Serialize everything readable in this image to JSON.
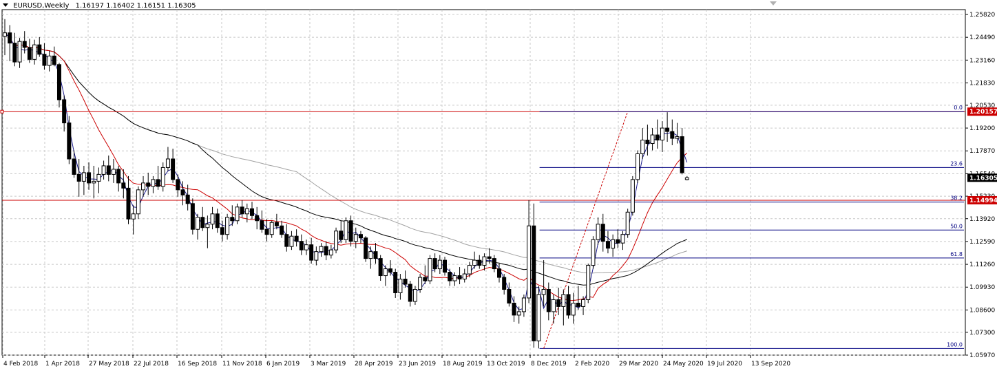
{
  "header": {
    "symbol": "EURUSD,Weekly",
    "ohlc": "1.16197 1.16402 1.16151 1.16305"
  },
  "colors": {
    "bull": "#ffffff",
    "bear": "#000000",
    "grid": "#c8c8c8",
    "ma_fast": "#1a1a8c",
    "ma_mid": "#cc0000",
    "ma_long": "#000000",
    "ma_xlong": "#a0a0a0",
    "fib": "#000080",
    "hline": "#cc0000",
    "trend": "#cc0000",
    "price_badge": "#000000",
    "level_badge": "#cc0000"
  },
  "chart_data": {
    "type": "candlestick",
    "symbol": "EURUSD",
    "timeframe": "Weekly",
    "y_ticks": [
      1.2582,
      1.2449,
      1.2316,
      1.2183,
      1.2053,
      1.192,
      1.1787,
      1.1654,
      1.1523,
      1.1392,
      1.1259,
      1.1126,
      1.0993,
      1.086,
      1.073,
      1.0597
    ],
    "y_tick_labels": [
      "1.25820",
      "1.24490",
      "1.23160",
      "1.21830",
      "1.20530",
      "1.19200",
      "1.17870",
      "1.16540",
      "1.15230",
      "1.13920",
      "1.12590",
      "1.11260",
      "1.09930",
      "1.08600",
      "1.07300",
      "1.05970"
    ],
    "ylim": [
      1.0597,
      1.2582
    ],
    "x_tick_labels": [
      "4 Feb 2018",
      "1 Apr 2018",
      "27 May 2018",
      "22 Jul 2018",
      "16 Sep 2018",
      "11 Nov 2018",
      "6 Jan 2019",
      "3 Mar 2019",
      "28 Apr 2019",
      "23 Jun 2019",
      "18 Aug 2019",
      "13 Oct 2019",
      "8 Dec 2019",
      "2 Feb 2020",
      "29 Mar 2020",
      "24 May 2020",
      "19 Jul 2020",
      "13 Sep 2020"
    ],
    "current_price": "1.16305",
    "current_price_value": 1.16305,
    "horizontal_levels": [
      {
        "label": "1.20157",
        "value": 1.20157
      },
      {
        "label": "1.14994",
        "value": 1.14994
      }
    ],
    "fibonacci": {
      "high": 1.20157,
      "low": 1.06358,
      "levels": [
        {
          "label": "0.0",
          "value": 1.20157
        },
        {
          "label": "23.6",
          "value": 1.16901
        },
        {
          "label": "38.2",
          "value": 1.14886
        },
        {
          "label": "50.0",
          "value": 1.13258
        },
        {
          "label": "61.8",
          "value": 1.1163
        },
        {
          "label": "100.0",
          "value": 1.06358
        }
      ]
    },
    "candles": [
      [
        1.2455,
        1.2555,
        1.2345,
        1.2475
      ],
      [
        1.2475,
        1.252,
        1.231,
        1.2415
      ],
      [
        1.2415,
        1.2475,
        1.228,
        1.2305
      ],
      [
        1.2305,
        1.2445,
        1.227,
        1.2425
      ],
      [
        1.2425,
        1.2485,
        1.2355,
        1.239
      ],
      [
        1.239,
        1.244,
        1.23,
        1.232
      ],
      [
        1.232,
        1.2435,
        1.229,
        1.2405
      ],
      [
        1.2405,
        1.245,
        1.2335,
        1.235
      ],
      [
        1.235,
        1.2415,
        1.226,
        1.2285
      ],
      [
        1.2285,
        1.237,
        1.225,
        1.234
      ],
      [
        1.234,
        1.2395,
        1.228,
        1.229
      ],
      [
        1.229,
        1.23,
        1.204,
        1.2085
      ],
      [
        1.2085,
        1.211,
        1.19,
        1.195
      ],
      [
        1.195,
        1.199,
        1.171,
        1.174
      ],
      [
        1.174,
        1.179,
        1.163,
        1.165
      ],
      [
        1.165,
        1.174,
        1.152,
        1.161
      ],
      [
        1.161,
        1.17,
        1.153,
        1.166
      ],
      [
        1.166,
        1.172,
        1.156,
        1.16
      ],
      [
        1.16,
        1.17,
        1.151,
        1.161
      ],
      [
        1.161,
        1.169,
        1.154,
        1.165
      ],
      [
        1.165,
        1.173,
        1.162,
        1.17
      ],
      [
        1.17,
        1.176,
        1.161,
        1.165
      ],
      [
        1.165,
        1.174,
        1.16,
        1.168
      ],
      [
        1.168,
        1.17,
        1.155,
        1.16
      ],
      [
        1.16,
        1.168,
        1.151,
        1.157
      ],
      [
        1.157,
        1.164,
        1.136,
        1.139
      ],
      [
        1.139,
        1.147,
        1.13,
        1.142
      ],
      [
        1.142,
        1.158,
        1.139,
        1.156
      ],
      [
        1.156,
        1.164,
        1.152,
        1.16
      ],
      [
        1.16,
        1.166,
        1.153,
        1.158
      ],
      [
        1.158,
        1.164,
        1.154,
        1.162
      ],
      [
        1.162,
        1.17,
        1.156,
        1.158
      ],
      [
        1.158,
        1.172,
        1.155,
        1.169
      ],
      [
        1.169,
        1.181,
        1.167,
        1.174
      ],
      [
        1.174,
        1.18,
        1.16,
        1.162
      ],
      [
        1.162,
        1.165,
        1.152,
        1.156
      ],
      [
        1.156,
        1.161,
        1.147,
        1.153
      ],
      [
        1.153,
        1.159,
        1.144,
        1.148
      ],
      [
        1.148,
        1.151,
        1.13,
        1.133
      ],
      [
        1.133,
        1.142,
        1.127,
        1.14
      ],
      [
        1.14,
        1.146,
        1.132,
        1.134
      ],
      [
        1.134,
        1.141,
        1.122,
        1.136
      ],
      [
        1.136,
        1.146,
        1.133,
        1.142
      ],
      [
        1.142,
        1.145,
        1.131,
        1.134
      ],
      [
        1.134,
        1.138,
        1.126,
        1.13
      ],
      [
        1.13,
        1.142,
        1.127,
        1.14
      ],
      [
        1.14,
        1.147,
        1.135,
        1.138
      ],
      [
        1.138,
        1.148,
        1.136,
        1.146
      ],
      [
        1.146,
        1.15,
        1.14,
        1.142
      ],
      [
        1.142,
        1.148,
        1.137,
        1.145
      ],
      [
        1.145,
        1.149,
        1.139,
        1.141
      ],
      [
        1.141,
        1.146,
        1.133,
        1.138
      ],
      [
        1.138,
        1.144,
        1.131,
        1.133
      ],
      [
        1.133,
        1.139,
        1.126,
        1.13
      ],
      [
        1.13,
        1.138,
        1.128,
        1.137
      ],
      [
        1.137,
        1.142,
        1.133,
        1.135
      ],
      [
        1.135,
        1.138,
        1.128,
        1.13
      ],
      [
        1.13,
        1.136,
        1.12,
        1.123
      ],
      [
        1.123,
        1.132,
        1.121,
        1.129
      ],
      [
        1.129,
        1.133,
        1.123,
        1.126
      ],
      [
        1.126,
        1.13,
        1.118,
        1.121
      ],
      [
        1.121,
        1.127,
        1.118,
        1.124
      ],
      [
        1.124,
        1.128,
        1.113,
        1.115
      ],
      [
        1.115,
        1.123,
        1.112,
        1.12
      ],
      [
        1.12,
        1.125,
        1.117,
        1.123
      ],
      [
        1.123,
        1.126,
        1.115,
        1.118
      ],
      [
        1.118,
        1.124,
        1.116,
        1.121
      ],
      [
        1.121,
        1.134,
        1.119,
        1.132
      ],
      [
        1.132,
        1.138,
        1.125,
        1.127
      ],
      [
        1.127,
        1.14,
        1.125,
        1.138
      ],
      [
        1.138,
        1.141,
        1.123,
        1.126
      ],
      [
        1.126,
        1.134,
        1.122,
        1.13
      ],
      [
        1.13,
        1.132,
        1.125,
        1.128
      ],
      [
        1.128,
        1.129,
        1.114,
        1.116
      ],
      [
        1.116,
        1.123,
        1.11,
        1.12
      ],
      [
        1.12,
        1.125,
        1.113,
        1.116
      ],
      [
        1.116,
        1.118,
        1.103,
        1.106
      ],
      [
        1.106,
        1.112,
        1.1,
        1.11
      ],
      [
        1.11,
        1.115,
        1.106,
        1.108
      ],
      [
        1.108,
        1.11,
        1.093,
        1.096
      ],
      [
        1.096,
        1.107,
        1.092,
        1.104
      ],
      [
        1.104,
        1.109,
        1.099,
        1.101
      ],
      [
        1.101,
        1.103,
        1.088,
        1.091
      ],
      [
        1.091,
        1.1,
        1.089,
        1.098
      ],
      [
        1.098,
        1.107,
        1.096,
        1.105
      ],
      [
        1.105,
        1.112,
        1.101,
        1.103
      ],
      [
        1.103,
        1.118,
        1.101,
        1.116
      ],
      [
        1.116,
        1.119,
        1.108,
        1.11
      ],
      [
        1.11,
        1.118,
        1.107,
        1.115
      ],
      [
        1.115,
        1.117,
        1.106,
        1.108
      ],
      [
        1.108,
        1.11,
        1.1,
        1.103
      ],
      [
        1.103,
        1.108,
        1.1,
        1.106
      ],
      [
        1.106,
        1.111,
        1.101,
        1.104
      ],
      [
        1.104,
        1.11,
        1.102,
        1.107
      ],
      [
        1.107,
        1.114,
        1.105,
        1.112
      ],
      [
        1.112,
        1.12,
        1.11,
        1.115
      ],
      [
        1.115,
        1.118,
        1.11,
        1.112
      ],
      [
        1.112,
        1.119,
        1.109,
        1.117
      ],
      [
        1.117,
        1.122,
        1.113,
        1.116
      ],
      [
        1.116,
        1.118,
        1.108,
        1.11
      ],
      [
        1.11,
        1.113,
        1.102,
        1.105
      ],
      [
        1.105,
        1.107,
        1.095,
        1.098
      ],
      [
        1.098,
        1.102,
        1.088,
        1.09
      ],
      [
        1.09,
        1.094,
        1.079,
        1.083
      ],
      [
        1.083,
        1.088,
        1.078,
        1.085
      ],
      [
        1.085,
        1.095,
        1.082,
        1.093
      ],
      [
        1.093,
        1.15,
        1.09,
        1.135
      ],
      [
        1.135,
        1.148,
        1.064,
        1.068
      ],
      [
        1.068,
        1.1,
        1.0636,
        1.095
      ],
      [
        1.095,
        1.115,
        1.088,
        1.098
      ],
      [
        1.098,
        1.102,
        1.08,
        1.085
      ],
      [
        1.085,
        1.095,
        1.078,
        1.092
      ],
      [
        1.092,
        1.099,
        1.083,
        1.088
      ],
      [
        1.088,
        1.098,
        1.077,
        1.095
      ],
      [
        1.095,
        1.1,
        1.081,
        1.083
      ],
      [
        1.083,
        1.096,
        1.078,
        1.09
      ],
      [
        1.09,
        1.1,
        1.086,
        1.088
      ],
      [
        1.088,
        1.094,
        1.083,
        1.092
      ],
      [
        1.092,
        1.113,
        1.09,
        1.112
      ],
      [
        1.112,
        1.129,
        1.11,
        1.127
      ],
      [
        1.127,
        1.14,
        1.124,
        1.136
      ],
      [
        1.136,
        1.142,
        1.12,
        1.126
      ],
      [
        1.126,
        1.132,
        1.119,
        1.122
      ],
      [
        1.122,
        1.13,
        1.117,
        1.127
      ],
      [
        1.127,
        1.133,
        1.122,
        1.125
      ],
      [
        1.125,
        1.132,
        1.121,
        1.13
      ],
      [
        1.13,
        1.145,
        1.128,
        1.143
      ],
      [
        1.143,
        1.164,
        1.141,
        1.162
      ],
      [
        1.162,
        1.179,
        1.16,
        1.177
      ],
      [
        1.177,
        1.192,
        1.174,
        1.185
      ],
      [
        1.185,
        1.194,
        1.176,
        1.183
      ],
      [
        1.183,
        1.192,
        1.179,
        1.188
      ],
      [
        1.188,
        1.197,
        1.18,
        1.185
      ],
      [
        1.185,
        1.196,
        1.178,
        1.192
      ],
      [
        1.192,
        1.2012,
        1.184,
        1.19
      ],
      [
        1.19,
        1.197,
        1.182,
        1.186
      ],
      [
        1.186,
        1.195,
        1.183,
        1.187
      ],
      [
        1.187,
        1.192,
        1.165,
        1.166
      ],
      [
        1.16197,
        1.16402,
        1.16151,
        1.16305
      ]
    ]
  }
}
